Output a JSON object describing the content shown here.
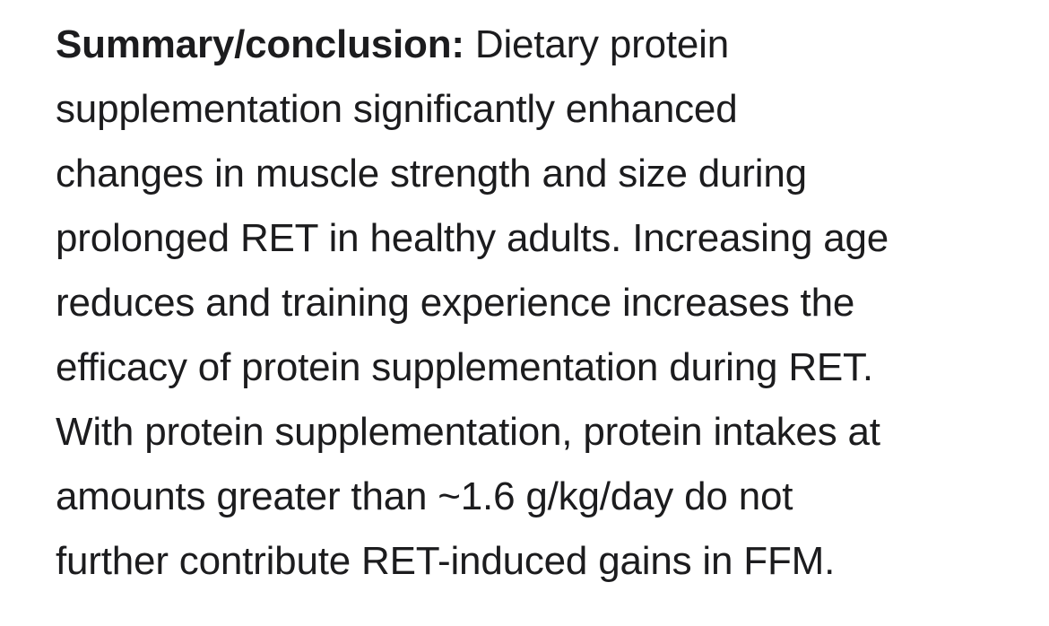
{
  "summary": {
    "heading": "Summary/conclusion:",
    "lines": [
      " Dietary protein",
      "supplementation significantly enhanced",
      "changes in muscle strength and size during",
      "prolonged RET in healthy adults. Increasing age",
      "reduces and training experience increases the",
      "efficacy of protein supplementation during RET.",
      "With protein supplementation, protein intakes at",
      "amounts greater than ~1.6 g/kg/day do not",
      "further contribute RET-induced gains in FFM."
    ]
  }
}
